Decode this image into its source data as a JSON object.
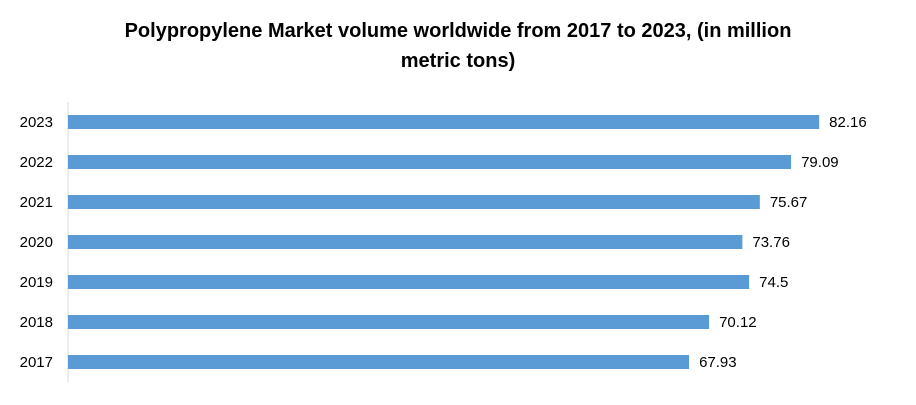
{
  "chart_data": {
    "type": "bar",
    "orientation": "horizontal",
    "title": "Polypropylene Market volume worldwide from 2017 to 2023, (in million metric tons)",
    "categories": [
      "2017",
      "2018",
      "2019",
      "2020",
      "2021",
      "2022",
      "2023"
    ],
    "values": [
      67.93,
      70.12,
      74.5,
      73.76,
      75.67,
      79.09,
      82.16
    ],
    "color": "#5b9bd5",
    "xlim": [
      0,
      91
    ]
  }
}
